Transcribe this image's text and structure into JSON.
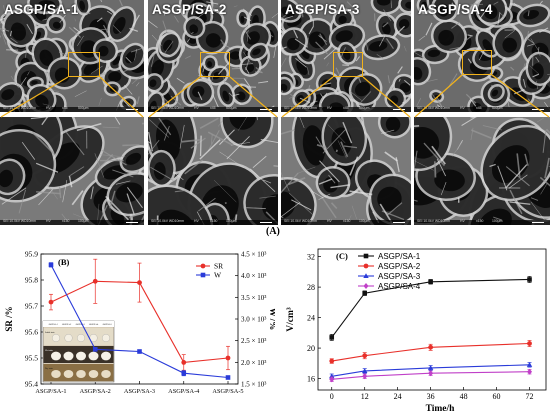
{
  "panel_a": {
    "label": "(A)",
    "samples": [
      {
        "name": "ASGP/SA-1",
        "top_bar": [
          "SEI 10.0kV WD10mm",
          "HV",
          "x45",
          "500μm"
        ],
        "bottom_bar": [
          "SEI 10.0kV WD10mm",
          "HV",
          "x150",
          "100μm"
        ]
      },
      {
        "name": "ASGP/SA-2",
        "top_bar": [
          "SEI 10.0kV WD10mm",
          "HV",
          "x45",
          "500μm"
        ],
        "bottom_bar": [
          "SEI 10.0kV WD10mm",
          "HV",
          "x150",
          "100μm"
        ]
      },
      {
        "name": "ASGP/SA-3",
        "top_bar": [
          "SEI 10.0kV WD10mm",
          "HV",
          "x45",
          "500μm"
        ],
        "bottom_bar": [
          "SEI 10.0kV WD10mm",
          "HV",
          "x150",
          "100μm"
        ]
      },
      {
        "name": "ASGP/SA-4",
        "top_bar": [
          "SEI 10.0kV WD10mm",
          "HV",
          "x45",
          "500μm"
        ],
        "bottom_bar": [
          "SEI 10.0kV WD10mm",
          "HV",
          "x150",
          "100μm"
        ]
      }
    ],
    "callout_color": "#f2b21a"
  },
  "chart_data": [
    {
      "panel": "(B)",
      "type": "line",
      "categories": [
        "ASGP/SA-1",
        "ASGP/SA-2",
        "ASGP/SA-3",
        "ASGP/SA-4",
        "ASGP/SA-5"
      ],
      "ylabel": "SR /%",
      "ylim": [
        95.4,
        95.9
      ],
      "yticks": [
        "95.4",
        "95.5",
        "95.6",
        "95.7",
        "95.8",
        "95.9"
      ],
      "y2label": "W /%",
      "y2lim": [
        1.5,
        4.5
      ],
      "y2ticks": [
        "1.5 × 10³",
        "2.0 × 10³",
        "2.5 × 10³",
        "3.0 × 10³",
        "3.5 × 10³",
        "4.0 × 10³",
        "4.5 × 10³"
      ],
      "legend": "top-right",
      "series": [
        {
          "name": "SR",
          "axis": "left",
          "color": "#e8302a",
          "marker": "circle",
          "values": [
            95.715,
            95.795,
            95.79,
            95.483,
            95.5
          ],
          "errors": [
            0.03,
            0.085,
            0.075,
            0.03,
            0.045
          ]
        },
        {
          "name": "W",
          "axis": "right",
          "color": "#2a3bd9",
          "marker": "square",
          "values": [
            4.25,
            2.3,
            2.25,
            1.75,
            1.65
          ],
          "errors": [
            0.05,
            0.03,
            0.03,
            0.06,
            0.02
          ]
        }
      ],
      "inset": {
        "header": [
          "ASGP/SA-1",
          "ASGP/SA-2",
          "ASGP/SA-3",
          "ASGP/SA-4",
          "ASGP/SA-5"
        ],
        "rows": [
          "Initial state",
          "Wet state",
          "Dry state"
        ]
      }
    },
    {
      "panel": "(C)",
      "type": "line",
      "x": [
        0,
        12,
        36,
        72
      ],
      "xlabel": "Time/h",
      "xlim": [
        -5,
        78
      ],
      "xticks": [
        "0",
        "12",
        "24",
        "36",
        "48",
        "60",
        "72"
      ],
      "ylabel": "V/cm³",
      "ylim": [
        14.5,
        33
      ],
      "yticks": [
        "16",
        "20",
        "24",
        "28",
        "32"
      ],
      "legend": "top-left",
      "series": [
        {
          "name": "ASGP/SA-1",
          "color": "#111111",
          "marker": "square",
          "values": [
            21.4,
            27.2,
            28.7,
            29.0
          ],
          "errors": [
            0.4,
            0.3,
            0.3,
            0.4
          ]
        },
        {
          "name": "ASGP/SA-2",
          "color": "#e8302a",
          "marker": "circle",
          "values": [
            18.3,
            19.0,
            20.1,
            20.6
          ],
          "errors": [
            0.3,
            0.4,
            0.4,
            0.4
          ]
        },
        {
          "name": "ASGP/SA-3",
          "color": "#2a3bd9",
          "marker": "triangle",
          "values": [
            16.3,
            17.0,
            17.4,
            17.8
          ],
          "errors": [
            0.3,
            0.3,
            0.3,
            0.3
          ]
        },
        {
          "name": "ASGP/SA-4",
          "color": "#c040c8",
          "marker": "diamond",
          "values": [
            15.9,
            16.3,
            16.7,
            16.9
          ],
          "errors": [
            0.3,
            0.3,
            0.3,
            0.3
          ]
        }
      ]
    }
  ]
}
